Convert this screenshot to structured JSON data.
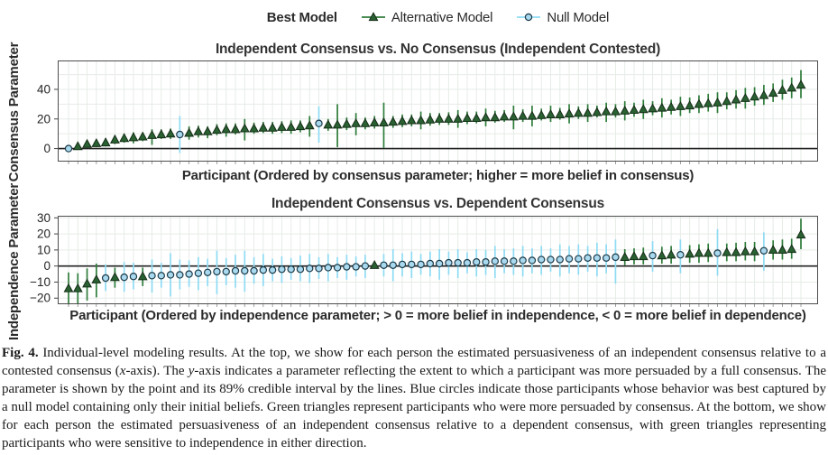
{
  "figure": {
    "legend": {
      "title": "Best Model",
      "items": [
        {
          "label": "Alternative Model",
          "marker": "triangle-icon"
        },
        {
          "label": "Null Model",
          "marker": "circle-icon"
        }
      ]
    },
    "caption_segments": [
      {
        "t": "Fig. 4.",
        "b": true
      },
      {
        "t": " Individual-level modeling results. At the top, we show for each person the estimated persuasiveness of an independent consensus relative to a contested consensus ("
      },
      {
        "t": "x",
        "i": true
      },
      {
        "t": "-axis). The "
      },
      {
        "t": "y",
        "i": true
      },
      {
        "t": "-axis indicates a parameter reflecting the extent to which a participant was more persuaded by a full consensus. The parameter is shown by the point and its 89% credible interval by the lines. Blue circles indicate those participants whose behavior was best captured by a null model containing only their initial beliefs. Green triangles represent participants who were more persuaded by consensus. At the bottom, we show for each person the estimated persuasiveness of an independent consensus relative to a dependent consensus, with green triangles representing participants who were sensitive to independence in either direction."
      }
    ]
  },
  "colors": {
    "alt_fill": "#2a6132",
    "alt_edge": "#152c17",
    "alt_bar": "#2f7d3b",
    "null_fill": "#a9d9ef",
    "null_edge": "#1d3a47",
    "null_bar": "#8fdbf4",
    "grid": "#e6ece7",
    "border": "#4d4d4d",
    "zero": "#222222",
    "tick": "#8a8a8a",
    "text": "#252525"
  },
  "chart_data": [
    {
      "type": "errorbar",
      "panel": "top",
      "title": "Independent Consensus vs. No Consensus (Independent Contested)",
      "xlabel": "Participant (Ordered by consensus parameter; higher = more belief in consensus)",
      "ylabel": "Consensus Parameter",
      "ylim": [
        -8.8,
        59.5
      ],
      "yticks": [
        {
          "v": 0,
          "label": "0"
        },
        {
          "v": 20,
          "label": "20"
        },
        {
          "v": 40,
          "label": "40"
        }
      ],
      "grid": true,
      "interval": "89% credible interval",
      "points_format": [
        "value",
        "ci_low",
        "ci_high",
        "model: 0=alternative (green triangle), 1=null (blue circle)"
      ],
      "points": [
        [
          0,
          -1.5,
          1.5,
          1
        ],
        [
          1.5,
          -0.5,
          4,
          0
        ],
        [
          3,
          0.5,
          5.5,
          0
        ],
        [
          3.5,
          1,
          6,
          0
        ],
        [
          4,
          1.5,
          7,
          0
        ],
        [
          6,
          3,
          9,
          0
        ],
        [
          7,
          4,
          10,
          0
        ],
        [
          7.5,
          3.5,
          11,
          0
        ],
        [
          8,
          5,
          11,
          0
        ],
        [
          9,
          2.5,
          13,
          0
        ],
        [
          9.5,
          6.5,
          13,
          0
        ],
        [
          10,
          6.5,
          13.5,
          0
        ],
        [
          9.5,
          -3,
          22,
          1
        ],
        [
          10.5,
          6,
          15,
          0
        ],
        [
          11.5,
          7.5,
          15.5,
          0
        ],
        [
          11.5,
          7,
          15,
          0
        ],
        [
          12.5,
          9,
          16.5,
          0
        ],
        [
          13,
          8,
          17,
          0
        ],
        [
          13,
          9.5,
          17,
          0
        ],
        [
          13.5,
          5.5,
          20,
          0
        ],
        [
          13.5,
          10,
          17.5,
          0
        ],
        [
          14,
          10.5,
          18,
          0
        ],
        [
          14,
          10,
          18,
          0
        ],
        [
          14.5,
          10.5,
          18.5,
          0
        ],
        [
          14.5,
          10,
          19,
          0
        ],
        [
          15,
          11,
          19,
          0
        ],
        [
          15.5,
          8,
          22,
          0
        ],
        [
          17,
          4,
          28.5,
          1
        ],
        [
          16,
          12,
          20,
          0
        ],
        [
          16,
          1,
          30,
          0
        ],
        [
          16.5,
          12.5,
          21,
          0
        ],
        [
          17,
          9,
          24,
          0
        ],
        [
          17,
          13,
          21,
          0
        ],
        [
          17.5,
          13.5,
          22,
          0
        ],
        [
          17.5,
          0.5,
          31,
          0
        ],
        [
          18,
          14,
          22,
          0
        ],
        [
          18.5,
          14.5,
          23,
          0
        ],
        [
          19,
          15,
          23,
          0
        ],
        [
          19,
          13,
          25,
          0
        ],
        [
          19.5,
          15.5,
          24,
          0
        ],
        [
          20,
          16,
          24,
          0
        ],
        [
          20,
          16,
          24.5,
          0
        ],
        [
          20,
          14,
          26,
          0
        ],
        [
          20.5,
          16.5,
          25,
          0
        ],
        [
          20.5,
          17,
          25,
          0
        ],
        [
          21,
          15,
          27,
          0
        ],
        [
          21,
          17.5,
          25.5,
          0
        ],
        [
          21.5,
          18,
          26,
          0
        ],
        [
          21.5,
          13,
          29,
          0
        ],
        [
          22,
          18,
          26.5,
          0
        ],
        [
          22,
          15,
          29,
          0
        ],
        [
          22.5,
          19,
          27,
          0
        ],
        [
          23,
          18,
          29,
          0
        ],
        [
          23,
          19.5,
          27.5,
          0
        ],
        [
          23.5,
          17,
          30,
          0
        ],
        [
          24,
          20,
          28.5,
          0
        ],
        [
          24,
          18,
          30,
          0
        ],
        [
          24.5,
          21,
          29,
          0
        ],
        [
          25,
          18,
          31,
          0
        ],
        [
          25,
          21,
          30,
          0
        ],
        [
          25.5,
          19,
          32,
          0
        ],
        [
          26,
          21.5,
          31,
          0
        ],
        [
          26.5,
          20,
          33,
          0
        ],
        [
          27,
          22.5,
          32,
          0
        ],
        [
          27.5,
          21,
          34,
          0
        ],
        [
          28,
          23,
          33,
          0
        ],
        [
          28.5,
          22,
          35,
          0
        ],
        [
          29,
          24,
          34.5,
          0
        ],
        [
          30,
          24,
          36,
          0
        ],
        [
          30.5,
          25,
          37,
          0
        ],
        [
          31,
          24,
          38,
          0
        ],
        [
          32,
          26.5,
          38,
          0
        ],
        [
          33,
          27,
          39.5,
          0
        ],
        [
          34,
          27,
          41,
          0
        ],
        [
          35,
          29,
          41.5,
          0
        ],
        [
          36,
          29.5,
          43,
          0
        ],
        [
          37.5,
          31.5,
          44,
          0
        ],
        [
          39.5,
          33,
          46.5,
          0
        ],
        [
          41,
          34,
          48,
          0
        ],
        [
          43,
          34,
          53,
          0
        ]
      ]
    },
    {
      "type": "errorbar",
      "panel": "bottom",
      "title": "Independent Consensus vs. Dependent Consensus",
      "xlabel": "Participant (Ordered by independence parameter; > 0 = more belief in independence, < 0 = more belief in dependence)",
      "ylabel": "Independence Parameter",
      "ylim": [
        -23.8,
        31.3
      ],
      "yticks": [
        {
          "v": 30,
          "label": "30"
        },
        {
          "v": 20,
          "label": "20"
        },
        {
          "v": 10,
          "label": "10"
        },
        {
          "v": 0,
          "label": "0"
        },
        {
          "v": -10,
          "label": "−10"
        },
        {
          "v": -20,
          "label": "−20"
        }
      ],
      "grid": true,
      "interval": "89% credible interval",
      "points_format": [
        "value",
        "ci_low",
        "ci_high",
        "model: 0=alternative (green triangle), 1=null (blue circle)"
      ],
      "points": [
        [
          -14,
          -24,
          -4,
          0
        ],
        [
          -14,
          -23.5,
          -4.5,
          0
        ],
        [
          -11,
          -21.5,
          -1.5,
          0
        ],
        [
          -8.5,
          -19.5,
          1.5,
          0
        ],
        [
          -7.5,
          -15.5,
          1,
          1
        ],
        [
          -7,
          -13.5,
          -1,
          0
        ],
        [
          -7,
          -16,
          2.5,
          1
        ],
        [
          -6.5,
          -14.5,
          2,
          1
        ],
        [
          -6.5,
          -12.5,
          -1,
          0
        ],
        [
          -6,
          -16.5,
          4,
          1
        ],
        [
          -6,
          -13.5,
          2,
          1
        ],
        [
          -5.5,
          -19,
          8,
          1
        ],
        [
          -5.5,
          -14.5,
          4,
          1
        ],
        [
          -5,
          -13,
          3.5,
          1
        ],
        [
          -4.5,
          -15,
          5.5,
          1
        ],
        [
          -4,
          -12.5,
          4.5,
          1
        ],
        [
          -3.5,
          -17.5,
          9.5,
          1
        ],
        [
          -3.5,
          -12,
          5,
          1
        ],
        [
          -3,
          -13.5,
          7,
          1
        ],
        [
          -3,
          -16,
          9.5,
          1
        ],
        [
          -3,
          -11,
          5.5,
          1
        ],
        [
          -2.5,
          -12.5,
          7.5,
          1
        ],
        [
          -2.5,
          -9.5,
          4.5,
          1
        ],
        [
          -2,
          -10.5,
          6,
          1
        ],
        [
          -2,
          -8.5,
          5,
          1
        ],
        [
          -2,
          -9.5,
          6.5,
          1
        ],
        [
          -1.5,
          -10.5,
          7.5,
          1
        ],
        [
          -1.5,
          -8,
          5.5,
          1
        ],
        [
          -1,
          -9.5,
          7.5,
          1
        ],
        [
          -1,
          -7.5,
          5.5,
          1
        ],
        [
          -0.5,
          -8.5,
          7,
          1
        ],
        [
          -0.5,
          -6.5,
          6,
          1
        ],
        [
          0,
          -7.5,
          7,
          1
        ],
        [
          0.5,
          -1.5,
          2.5,
          0
        ],
        [
          0.5,
          -6.5,
          7.5,
          1
        ],
        [
          0.5,
          -9.5,
          10.5,
          1
        ],
        [
          1,
          -6.5,
          8,
          1
        ],
        [
          1,
          -7.5,
          9,
          1
        ],
        [
          1,
          -5.5,
          7.5,
          1
        ],
        [
          1.5,
          -6.5,
          9,
          1
        ],
        [
          1.5,
          -8.5,
          10.5,
          1
        ],
        [
          2,
          -5.5,
          9,
          1
        ],
        [
          2,
          -7.5,
          10.5,
          1
        ],
        [
          2,
          -4.5,
          8.5,
          1
        ],
        [
          2.5,
          -6.5,
          10.5,
          1
        ],
        [
          2.5,
          -5.5,
          10,
          1
        ],
        [
          3,
          -7.5,
          12.5,
          1
        ],
        [
          3,
          -4.5,
          10.5,
          1
        ],
        [
          3,
          -5.5,
          11,
          1
        ],
        [
          3.5,
          -6.5,
          12.5,
          1
        ],
        [
          3.5,
          -4.5,
          11,
          1
        ],
        [
          4,
          -5.5,
          12.5,
          1
        ],
        [
          4,
          -3.5,
          11,
          1
        ],
        [
          4,
          -6.5,
          13.5,
          1
        ],
        [
          4.5,
          -4.5,
          12.5,
          1
        ],
        [
          4.5,
          -5.5,
          13.5,
          1
        ],
        [
          5,
          -3.5,
          12.5,
          1
        ],
        [
          5,
          -6.5,
          14.5,
          1
        ],
        [
          5,
          -4.5,
          13.5,
          1
        ],
        [
          5.5,
          -11,
          16.5,
          1
        ],
        [
          5.5,
          0.5,
          10.5,
          0
        ],
        [
          6,
          1,
          11,
          0
        ],
        [
          6,
          1,
          11.5,
          0
        ],
        [
          6.5,
          -3.5,
          15.5,
          1
        ],
        [
          6.5,
          1.5,
          12,
          0
        ],
        [
          7,
          1.5,
          12.5,
          0
        ],
        [
          7,
          -4.5,
          16.5,
          1
        ],
        [
          7.5,
          2,
          13,
          0
        ],
        [
          8,
          2,
          13.5,
          0
        ],
        [
          8,
          2.5,
          14,
          0
        ],
        [
          8,
          -6,
          23,
          1
        ],
        [
          8.5,
          3,
          14,
          0
        ],
        [
          8.5,
          3,
          14.5,
          0
        ],
        [
          9,
          3.5,
          15,
          0
        ],
        [
          9,
          3,
          15,
          0
        ],
        [
          9.5,
          -3,
          21,
          1
        ],
        [
          10,
          4,
          16,
          0
        ],
        [
          10,
          4,
          16.5,
          0
        ],
        [
          10.5,
          4.5,
          17,
          0
        ],
        [
          19.5,
          10.5,
          29.5,
          0
        ]
      ]
    }
  ]
}
